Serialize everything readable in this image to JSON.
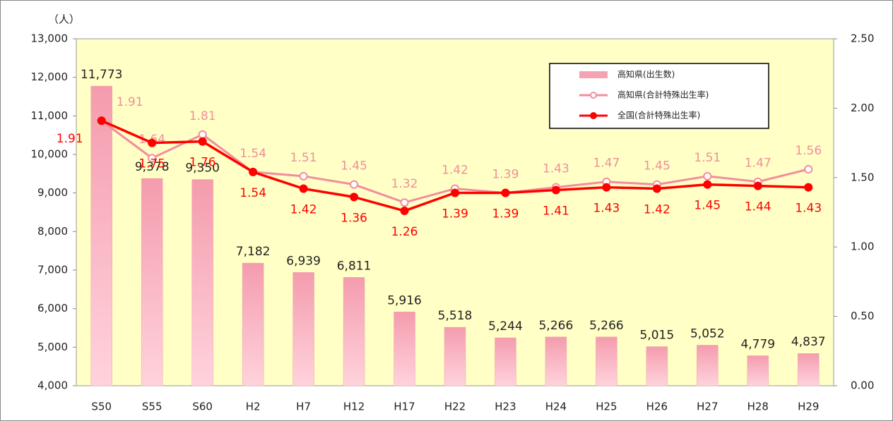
{
  "chart_data": {
    "type": "bar",
    "unit_label": "（人）",
    "categories": [
      "S50",
      "S55",
      "S60",
      "H2",
      "H7",
      "H12",
      "H17",
      "H22",
      "H23",
      "H24",
      "H25",
      "H26",
      "H27",
      "H28",
      "H29"
    ],
    "series": [
      {
        "name": "高知県(出生数)",
        "type": "bar",
        "color": "#f4a3b3",
        "values": [
          11773,
          9378,
          9350,
          7182,
          6939,
          6811,
          5916,
          5518,
          5244,
          5266,
          5266,
          5015,
          5052,
          4779,
          4837
        ],
        "value_labels": [
          "11,773",
          "9,378",
          "9,350",
          "7,182",
          "6,939",
          "6,811",
          "5,916",
          "5,518",
          "5,244",
          "5,266",
          "5,266",
          "5,015",
          "5,052",
          "4,779",
          "4,837"
        ]
      },
      {
        "name": "高知県(合計特殊出生率)",
        "type": "line",
        "axis": "y2",
        "color": "#f28d9d",
        "values": [
          1.91,
          1.64,
          1.81,
          1.54,
          1.51,
          1.45,
          1.32,
          1.42,
          1.39,
          1.43,
          1.47,
          1.45,
          1.51,
          1.47,
          1.56
        ]
      },
      {
        "name": "全国(合計特殊出生率)",
        "type": "line",
        "axis": "y2",
        "color": "#ff0000",
        "values": [
          1.91,
          1.75,
          1.76,
          1.54,
          1.42,
          1.36,
          1.26,
          1.39,
          1.39,
          1.41,
          1.43,
          1.42,
          1.45,
          1.44,
          1.43
        ]
      }
    ],
    "ylim": [
      4000,
      13000
    ],
    "yticks": [
      {
        "value": 4000,
        "label": "4,000"
      },
      {
        "value": 5000,
        "label": "5,000"
      },
      {
        "value": 6000,
        "label": "6,000"
      },
      {
        "value": 7000,
        "label": "7,000"
      },
      {
        "value": 8000,
        "label": "8,000"
      },
      {
        "value": 9000,
        "label": "9,000"
      },
      {
        "value": 10000,
        "label": "10,000"
      },
      {
        "value": 11000,
        "label": "11,000"
      },
      {
        "value": 12000,
        "label": "12,000"
      },
      {
        "value": 13000,
        "label": "13,000"
      }
    ],
    "y2lim": [
      0,
      2.5
    ],
    "y2ticks": [
      {
        "value": 0,
        "label": "0.00"
      },
      {
        "value": 0.5,
        "label": "0.50"
      },
      {
        "value": 1,
        "label": "1.00"
      },
      {
        "value": 1.5,
        "label": "1.50"
      },
      {
        "value": 2,
        "label": "2.00"
      },
      {
        "value": 2.5,
        "label": "2.50"
      }
    ],
    "legend": "top-right"
  }
}
